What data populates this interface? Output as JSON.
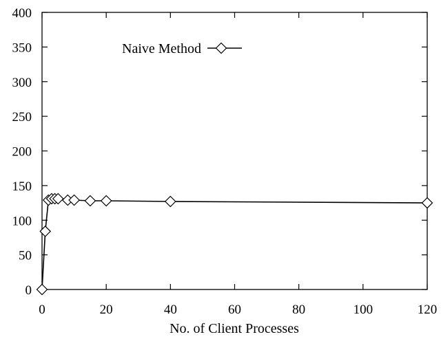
{
  "chart_data": {
    "type": "line",
    "title": "",
    "xlabel": "No. of Client Processes",
    "ylabel": "",
    "xlim": [
      0,
      120
    ],
    "ylim": [
      0,
      400
    ],
    "xticks": [
      0,
      20,
      40,
      60,
      80,
      100,
      120
    ],
    "yticks": [
      0,
      50,
      100,
      150,
      200,
      250,
      300,
      350,
      400
    ],
    "grid": false,
    "legend_position": "top-left",
    "series": [
      {
        "name": "Naive Method",
        "marker": "diamond",
        "color": "#000000",
        "x": [
          0,
          1,
          2,
          3,
          4,
          5,
          8,
          10,
          15,
          20,
          40,
          120
        ],
        "y": [
          0,
          84,
          129,
          131,
          131,
          131,
          129,
          129,
          128,
          128,
          127,
          125
        ]
      }
    ]
  }
}
